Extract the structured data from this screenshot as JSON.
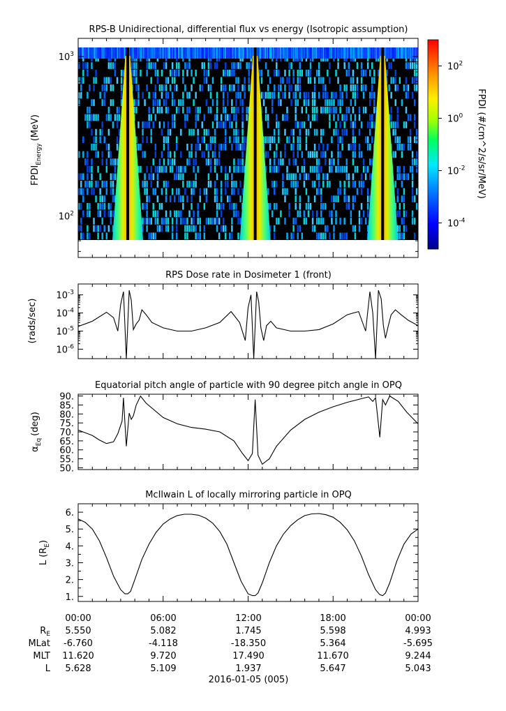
{
  "chart_data": [
    {
      "type": "heatmap",
      "title": "RPS-B  Unidirectional, differential flux vs energy (Isotropic assumption)",
      "ylabel_main": "FPDI",
      "ylabel_sub": "Energy",
      "ylabel_units": "(MeV)",
      "yscale": "log",
      "ylim": [
        55,
        1300
      ],
      "yticks": [
        {
          "value": 100,
          "label": "10",
          "exp": "2"
        },
        {
          "value": 1000,
          "label": "10",
          "exp": "3"
        }
      ],
      "xlim_hours": [
        0,
        24
      ],
      "colorbar": {
        "label": "FPDI (#/cm^2/s/sr/MeV)",
        "log_range": [
          -5,
          3
        ],
        "ticks": [
          {
            "exp": -4,
            "label": "10",
            "sup": "-4"
          },
          {
            "exp": -2,
            "label": "10",
            "sup": "-2"
          },
          {
            "exp": 0,
            "label": "10",
            "sup": "0"
          },
          {
            "exp": 2,
            "label": "10",
            "sup": "2"
          }
        ]
      },
      "bright_bands_hours": [
        3.5,
        12.5,
        21.5
      ],
      "background_log_flux": -3.5
    },
    {
      "type": "line",
      "title": "RPS  Dose rate in Dosimeter 1 (front)",
      "ylabel": "(rads/sec)",
      "yscale": "log",
      "ylim": [
        3e-07,
        0.004
      ],
      "yticks": [
        {
          "exp": -3
        },
        {
          "exp": -4
        },
        {
          "exp": -5
        },
        {
          "exp": -6
        }
      ],
      "x_hours": [
        0,
        1,
        2,
        2.5,
        2.8,
        3.0,
        3.2,
        3.4,
        3.6,
        3.75,
        3.9,
        4.1,
        4.3,
        4.5,
        4.8,
        5.2,
        6,
        7,
        8,
        9,
        10,
        10.8,
        11.4,
        11.8,
        12.0,
        12.2,
        12.4,
        12.6,
        12.75,
        12.9,
        13.1,
        13.3,
        13.6,
        14,
        15,
        16,
        17,
        18,
        19,
        19.8,
        20.3,
        20.6,
        20.8,
        21.0,
        21.2,
        21.4,
        21.55,
        21.7,
        21.9,
        22.1,
        22.4,
        22.8,
        23.3,
        24
      ],
      "y_values": [
        1.8e-05,
        3.5e-05,
        0.00011,
        5.5e-05,
        1e-05,
        0.0003,
        0.0015,
        3e-07,
        0.0018,
        0.0005,
        1.2e-05,
        2.5e-05,
        4e-05,
        0.00015,
        8e-05,
        3e-05,
        1.5e-05,
        1e-05,
        1e-05,
        1.5e-05,
        3e-05,
        0.00012,
        3e-05,
        3e-06,
        0.0002,
        0.001,
        3e-07,
        0.0015,
        0.0004,
        1.5e-05,
        3e-06,
        2e-05,
        3.5e-05,
        1.5e-05,
        1e-05,
        1e-05,
        1.2e-05,
        2.5e-05,
        8e-05,
        0.00012,
        1e-05,
        0.0015,
        0.0001,
        3e-07,
        0.0018,
        0.0006,
        2e-05,
        4e-06,
        2e-05,
        8e-05,
        0.00015,
        8e-05,
        4e-05,
        2e-05
      ]
    },
    {
      "type": "line",
      "title": "Equatorial pitch angle of particle with 90 degree pitch angle in OPQ",
      "ylabel_main": "α",
      "ylabel_sub": "Eq",
      "ylabel_units": "(deg)",
      "ylim": [
        49,
        91
      ],
      "yticks": [
        50,
        55,
        60,
        65,
        70,
        75,
        80,
        85,
        90
      ],
      "ytick_labels": [
        "50.",
        "55.",
        "60.",
        "65.",
        "70.",
        "75.",
        "80.",
        "85.",
        "90."
      ],
      "x_hours": [
        0,
        1,
        1.5,
        2,
        2.5,
        2.8,
        3.1,
        3.2,
        3.3,
        3.4,
        3.6,
        3.75,
        3.9,
        4.1,
        4.4,
        4.8,
        6,
        7,
        8,
        9,
        10,
        11,
        11.6,
        12.0,
        12.3,
        12.5,
        12.7,
        13.0,
        13.5,
        14,
        15,
        16,
        17,
        18,
        19,
        20,
        20.5,
        20.8,
        21.0,
        21.15,
        21.3,
        21.5,
        21.7,
        22,
        22.6,
        23.2,
        24
      ],
      "y_values": [
        71,
        68,
        65.5,
        63.5,
        64.5,
        69,
        76,
        89,
        75,
        62,
        80.5,
        77,
        79,
        85,
        90,
        86,
        78,
        74.5,
        72.5,
        71.5,
        70,
        65,
        58,
        54,
        58,
        88,
        57,
        52,
        55,
        62,
        71,
        77,
        81,
        84,
        86.5,
        88.5,
        89.5,
        87,
        89,
        78,
        67,
        88,
        85,
        90,
        87,
        81,
        74.5
      ]
    },
    {
      "type": "line",
      "title": "McIlwain L of locally mirroring particle in OPQ",
      "ylabel_main": "L (R",
      "ylabel_sub": "E",
      "ylabel_end": ")",
      "ylim": [
        0.7,
        6.5
      ],
      "yticks": [
        1,
        2,
        3,
        4,
        5,
        6
      ],
      "ytick_labels": [
        "1.",
        "2.",
        "3.",
        "4.",
        "5.",
        "6."
      ],
      "x_hours": [
        0,
        0.5,
        1,
        1.5,
        2,
        2.5,
        3,
        3.3,
        3.5,
        3.7,
        4,
        4.5,
        5,
        5.5,
        6,
        6.5,
        7,
        7.5,
        8,
        8.5,
        9,
        9.5,
        10,
        10.5,
        11,
        11.5,
        12,
        12.3,
        12.5,
        12.7,
        13,
        13.5,
        14,
        14.5,
        15,
        15.5,
        16,
        16.5,
        17,
        17.5,
        18,
        18.5,
        19,
        19.5,
        20,
        20.5,
        21,
        21.3,
        21.5,
        21.7,
        22,
        22.5,
        23,
        23.5,
        24
      ],
      "y_values": [
        5.6,
        5.4,
        5.0,
        4.3,
        3.3,
        2.2,
        1.4,
        1.15,
        1.15,
        1.3,
        2.0,
        3.2,
        4.1,
        4.8,
        5.3,
        5.6,
        5.8,
        5.88,
        5.88,
        5.82,
        5.65,
        5.35,
        4.85,
        4.1,
        3.0,
        1.9,
        1.15,
        1.05,
        1.05,
        1.2,
        1.8,
        3.0,
        4.0,
        4.7,
        5.2,
        5.55,
        5.8,
        5.9,
        5.92,
        5.85,
        5.7,
        5.4,
        4.95,
        4.3,
        3.4,
        2.3,
        1.4,
        1.1,
        1.05,
        1.2,
        1.8,
        3.1,
        4.1,
        4.7,
        5.0
      ]
    }
  ],
  "xaxis": {
    "tick_labels": [
      "00:00",
      "06:00",
      "12:00",
      "18:00",
      "00:00"
    ],
    "row_labels": [
      {
        "main": "R",
        "sub": "E"
      },
      {
        "main": "MLat",
        "sub": ""
      },
      {
        "main": "MLT",
        "sub": ""
      },
      {
        "main": "L",
        "sub": ""
      }
    ],
    "rows": [
      [
        "5.550",
        "5.082",
        "1.745",
        "5.598",
        "4.993"
      ],
      [
        "-6.760",
        "-4.118",
        "-18.350",
        "5.364",
        "-5.695"
      ],
      [
        "11.620",
        "9.720",
        "17.490",
        "11.670",
        "9.244"
      ],
      [
        "5.628",
        "5.109",
        "1.937",
        "5.647",
        "5.043"
      ]
    ],
    "date_label": "2016-01-05 (005)"
  }
}
